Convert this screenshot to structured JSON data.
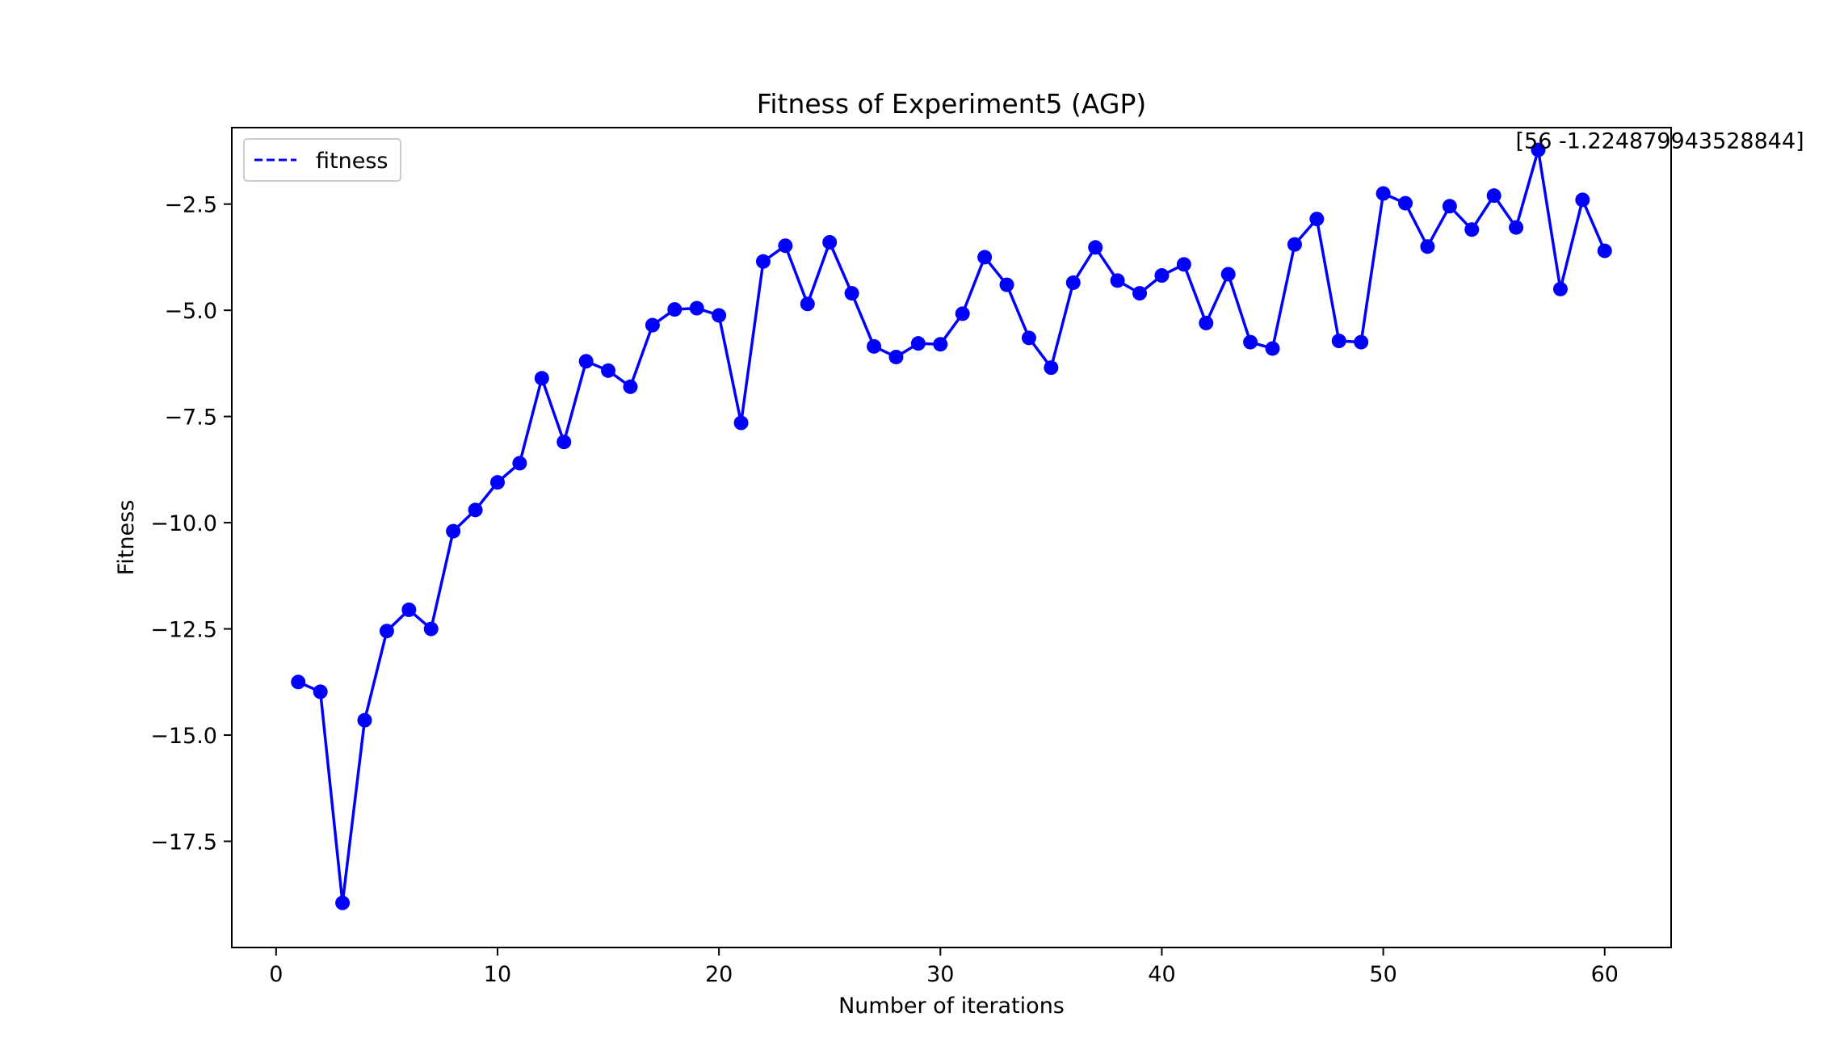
{
  "chart_data": {
    "type": "line",
    "title": "Fitness of Experiment5 (AGP)",
    "xlabel": "Number of iterations",
    "ylabel": "Fitness",
    "xlim": [
      -2,
      63
    ],
    "ylim": [
      -20.0,
      -0.7
    ],
    "xticks": [
      0,
      10,
      20,
      30,
      40,
      50,
      60
    ],
    "xtick_labels": [
      "0",
      "10",
      "20",
      "30",
      "40",
      "50",
      "60"
    ],
    "yticks": [
      -17.5,
      -15.0,
      -12.5,
      -10.0,
      -7.5,
      -5.0,
      -2.5
    ],
    "ytick_labels": [
      "−17.5",
      "−15.0",
      "−12.5",
      "−10.0",
      "−7.5",
      "−5.0",
      "−2.5"
    ],
    "grid": false,
    "legend": {
      "placement": "upper-left",
      "entries": [
        "fitness"
      ]
    },
    "color": "#0000ff",
    "series": [
      {
        "name": "fitness",
        "x": [
          1,
          2,
          3,
          4,
          5,
          6,
          7,
          8,
          9,
          10,
          11,
          12,
          13,
          14,
          15,
          16,
          17,
          18,
          19,
          20,
          21,
          22,
          23,
          24,
          25,
          26,
          27,
          28,
          29,
          30,
          31,
          32,
          33,
          34,
          35,
          36,
          37,
          38,
          39,
          40,
          41,
          42,
          43,
          44,
          45,
          46,
          47,
          48,
          49,
          50,
          51,
          52,
          53,
          54,
          55,
          56,
          57,
          58,
          59,
          60
        ],
        "y": [
          -13.75,
          -13.98,
          -18.95,
          -14.65,
          -12.55,
          -12.05,
          -12.5,
          -10.2,
          -9.7,
          -9.05,
          -8.6,
          -6.6,
          -8.1,
          -6.2,
          -6.42,
          -6.8,
          -5.35,
          -4.98,
          -4.95,
          -5.12,
          -7.65,
          -3.85,
          -3.48,
          -4.85,
          -3.4,
          -4.6,
          -5.85,
          -6.1,
          -5.78,
          -5.8,
          -5.08,
          -3.75,
          -4.4,
          -5.65,
          -6.35,
          -4.35,
          -3.52,
          -4.3,
          -4.6,
          -4.18,
          -3.92,
          -5.3,
          -4.15,
          -5.75,
          -5.9,
          -3.45,
          -2.85,
          -5.72,
          -5.75,
          -2.25,
          -2.48,
          -3.5,
          -2.55,
          -3.1,
          -2.3,
          -3.05,
          -1.2248799435,
          -4.5,
          -2.4,
          -3.6
        ]
      }
    ],
    "annotation": {
      "x": 57,
      "y": -1.2248799435,
      "text": "[56 -1.224879943528844]"
    }
  }
}
